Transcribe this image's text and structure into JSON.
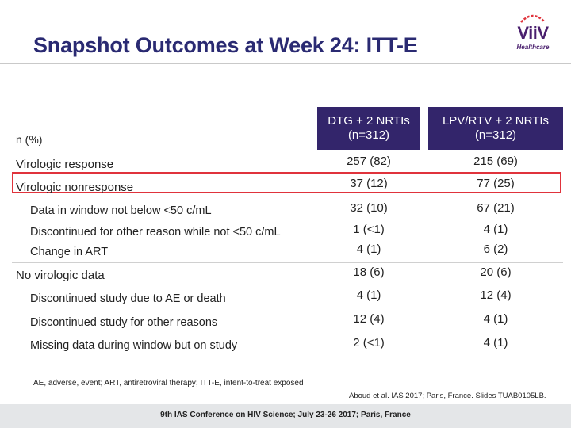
{
  "title": "Snapshot Outcomes at Week 24: ITT-E",
  "logo": {
    "name": "ViiV",
    "sub": "Healthcare"
  },
  "table": {
    "n_label": "n (%)",
    "columns": [
      {
        "line1": "DTG + 2 NRTIs",
        "line2": "(n=312)"
      },
      {
        "line1": "LPV/RTV + 2 NRTIs",
        "line2": "(n=312)"
      }
    ],
    "rows": [
      {
        "label": "Virologic response",
        "v1": "257 (82)",
        "v2": "215 (69)"
      },
      {
        "label": "Virologic nonresponse",
        "v1": "37 (12)",
        "v2": "77 (25)",
        "highlighted": true
      },
      {
        "label": "Data in window not below <50 c/mL",
        "v1": "32 (10)",
        "v2": "67 (21)"
      },
      {
        "label": "Discontinued for other reason while not <50 c/mL",
        "v1": "1 (<1)",
        "v2": "4 (1)"
      },
      {
        "label": "Change in ART",
        "v1": "4 (1)",
        "v2": "6 (2)"
      },
      {
        "label": "No virologic data",
        "v1": "18 (6)",
        "v2": "20 (6)"
      },
      {
        "label": "Discontinued study due to AE or death",
        "v1": "4 (1)",
        "v2": "12 (4)"
      },
      {
        "label": "Discontinued study for other reasons",
        "v1": "12 (4)",
        "v2": "4 (1)"
      },
      {
        "label": "Missing data during window but on study",
        "v1": "2 (<1)",
        "v2": "4 (1)"
      }
    ]
  },
  "footnote": "AE, adverse, event; ART, antiretroviral therapy; ITT-E, intent-to-treat exposed",
  "citation": "Aboud et al. IAS 2017; Paris, France. Slides TUAB0105LB.",
  "footer": "9th IAS Conference on HIV Science; July 23-26 2017; Paris, France"
}
